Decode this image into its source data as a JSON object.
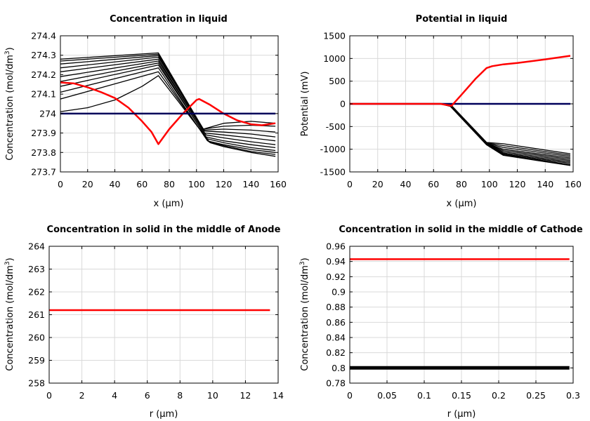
{
  "charts": [
    {
      "title": "Concentration in liquid",
      "xlabel": "x (µm)",
      "ylabel_main": "Concentration (mol/dm",
      "ylabel_sup": "3",
      "ylabel_tail": ")"
    },
    {
      "title": "Potential in liquid",
      "xlabel": "x (µm)",
      "ylabel_main": "Potential (mV)",
      "ylabel_sup": "",
      "ylabel_tail": ""
    },
    {
      "title": "Concentration in solid in the middle of Anode",
      "xlabel": "r (µm)",
      "ylabel_main": "Concentration (mol/dm",
      "ylabel_sup": "3",
      "ylabel_tail": ")"
    },
    {
      "title": "Concentration in solid in the middle of Cathode",
      "xlabel": "r (µm)",
      "ylabel_main": "Concentration (mol/dm",
      "ylabel_sup": "3",
      "ylabel_tail": ")"
    }
  ],
  "chart_data": [
    {
      "type": "line",
      "title": "Concentration in liquid",
      "xlabel": "x (µm)",
      "ylabel": "Concentration (mol/dm3)",
      "xlim": [
        0,
        160
      ],
      "ylim": [
        273.7,
        274.4
      ],
      "xticks": [
        0,
        20,
        40,
        60,
        80,
        100,
        120,
        140,
        160
      ],
      "xtick_labels": [
        "0",
        "20",
        "40",
        "60",
        "80",
        "100",
        "120",
        "140",
        "160"
      ],
      "yticks": [
        273.7,
        273.8,
        273.9,
        274.0,
        274.1,
        274.2,
        274.3,
        274.4
      ],
      "ytick_labels": [
        "273.7",
        "273.8",
        "273.9",
        "274",
        "274.1",
        "274.2",
        "274.3",
        "274.4"
      ],
      "grid": true,
      "legend": "none",
      "series": [
        {
          "color": "#000000",
          "width": 1.3,
          "x": [
            0,
            72,
            105,
            120,
            140,
            158
          ],
          "y": [
            274.28,
            274.312,
            273.92,
            273.95,
            273.96,
            273.95
          ]
        },
        {
          "color": "#000000",
          "width": 1.3,
          "x": [
            0,
            72,
            105,
            120,
            140,
            158
          ],
          "y": [
            274.27,
            274.305,
            273.92,
            273.935,
            273.94,
            273.935
          ]
        },
        {
          "color": "#000000",
          "width": 1.3,
          "x": [
            0,
            72,
            105,
            120,
            140,
            158
          ],
          "y": [
            274.255,
            274.298,
            273.915,
            273.92,
            273.915,
            273.905
          ]
        },
        {
          "color": "#000000",
          "width": 1.3,
          "x": [
            0,
            72,
            106,
            120,
            140,
            158
          ],
          "y": [
            274.235,
            274.29,
            273.91,
            273.905,
            273.895,
            273.88
          ]
        },
        {
          "color": "#000000",
          "width": 1.3,
          "x": [
            0,
            72,
            106,
            120,
            140,
            158
          ],
          "y": [
            274.215,
            274.28,
            273.9,
            273.89,
            273.875,
            273.86
          ]
        },
        {
          "color": "#000000",
          "width": 1.3,
          "x": [
            0,
            72,
            107,
            120,
            140,
            158
          ],
          "y": [
            274.19,
            274.27,
            273.89,
            273.875,
            273.855,
            273.84
          ]
        },
        {
          "color": "#000000",
          "width": 1.3,
          "x": [
            0,
            72,
            107,
            120,
            140,
            158
          ],
          "y": [
            274.165,
            274.26,
            273.88,
            273.86,
            273.84,
            273.825
          ]
        },
        {
          "color": "#000000",
          "width": 1.3,
          "x": [
            0,
            72,
            108,
            120,
            140,
            158
          ],
          "y": [
            274.14,
            274.25,
            273.87,
            273.85,
            273.825,
            273.81
          ]
        },
        {
          "color": "#000000",
          "width": 1.3,
          "x": [
            0,
            72,
            108,
            120,
            140,
            158
          ],
          "y": [
            274.11,
            274.235,
            273.86,
            273.84,
            273.815,
            273.8
          ]
        },
        {
          "color": "#000000",
          "width": 1.3,
          "x": [
            0,
            72,
            109,
            120,
            140,
            158
          ],
          "y": [
            274.075,
            274.215,
            273.855,
            273.835,
            273.805,
            273.79
          ]
        },
        {
          "color": "#000000",
          "width": 1.3,
          "x": [
            0,
            20,
            40,
            60,
            72,
            110,
            120,
            140,
            158
          ],
          "y": [
            274.01,
            274.03,
            274.07,
            274.14,
            274.195,
            273.85,
            273.83,
            273.8,
            273.78
          ]
        },
        {
          "color": "#ff0000",
          "width": 2.5,
          "x": [
            0,
            10,
            20,
            30,
            40,
            50,
            60,
            67,
            72,
            80,
            90,
            100,
            102,
            110,
            120,
            130,
            140,
            148,
            158
          ],
          "y": [
            274.16,
            274.155,
            274.135,
            274.11,
            274.08,
            274.03,
            273.96,
            273.905,
            273.843,
            273.92,
            274.0,
            274.07,
            274.075,
            274.045,
            274.0,
            273.965,
            273.945,
            273.94,
            273.95
          ]
        },
        {
          "color": "#00005a",
          "width": 2.5,
          "x": [
            0,
            158
          ],
          "y": [
            274.0,
            274.0
          ]
        }
      ]
    },
    {
      "type": "line",
      "title": "Potential in liquid",
      "xlabel": "x (µm)",
      "ylabel": "Potential (mV)",
      "xlim": [
        0,
        160
      ],
      "ylim": [
        -1500,
        1500
      ],
      "xticks": [
        0,
        20,
        40,
        60,
        80,
        100,
        120,
        140,
        160
      ],
      "xtick_labels": [
        "0",
        "20",
        "40",
        "60",
        "80",
        "100",
        "120",
        "140",
        "160"
      ],
      "yticks": [
        -1500,
        -1000,
        -500,
        0,
        500,
        1000,
        1500
      ],
      "ytick_labels": [
        "-1500",
        "-1000",
        "-500",
        "0",
        "500",
        "1000",
        "1500"
      ],
      "grid": true,
      "legend": "none",
      "series": [
        {
          "color": "#000000",
          "width": 1.3,
          "x": [
            0,
            65,
            72,
            98,
            110,
            158
          ],
          "y": [
            0,
            0,
            -10,
            -850,
            -880,
            -1100
          ]
        },
        {
          "color": "#000000",
          "width": 1.3,
          "x": [
            0,
            65,
            72,
            98,
            110,
            158
          ],
          "y": [
            0,
            0,
            -15,
            -860,
            -920,
            -1130
          ]
        },
        {
          "color": "#000000",
          "width": 1.3,
          "x": [
            0,
            65,
            72,
            98,
            110,
            158
          ],
          "y": [
            0,
            0,
            -20,
            -870,
            -960,
            -1160
          ]
        },
        {
          "color": "#000000",
          "width": 1.3,
          "x": [
            0,
            65,
            72,
            98,
            110,
            158
          ],
          "y": [
            0,
            0,
            -25,
            -875,
            -1000,
            -1190
          ]
        },
        {
          "color": "#000000",
          "width": 1.3,
          "x": [
            0,
            65,
            72,
            98,
            110,
            158
          ],
          "y": [
            0,
            0,
            -30,
            -880,
            -1030,
            -1220
          ]
        },
        {
          "color": "#000000",
          "width": 1.3,
          "x": [
            0,
            65,
            72,
            98,
            110,
            158
          ],
          "y": [
            0,
            0,
            -35,
            -885,
            -1060,
            -1250
          ]
        },
        {
          "color": "#000000",
          "width": 1.3,
          "x": [
            0,
            65,
            72,
            98,
            110,
            158
          ],
          "y": [
            0,
            0,
            -40,
            -890,
            -1085,
            -1280
          ]
        },
        {
          "color": "#000000",
          "width": 1.3,
          "x": [
            0,
            65,
            72,
            98,
            110,
            158
          ],
          "y": [
            0,
            0,
            -45,
            -895,
            -1105,
            -1310
          ]
        },
        {
          "color": "#000000",
          "width": 1.3,
          "x": [
            0,
            65,
            72,
            98,
            110,
            158
          ],
          "y": [
            0,
            0,
            -50,
            -900,
            -1120,
            -1340
          ]
        },
        {
          "color": "#000000",
          "width": 1.3,
          "x": [
            0,
            65,
            72,
            98,
            110,
            158
          ],
          "y": [
            0,
            0,
            -55,
            -905,
            -1135,
            -1360
          ]
        },
        {
          "color": "#00005a",
          "width": 2.5,
          "x": [
            0,
            158
          ],
          "y": [
            0,
            0
          ]
        },
        {
          "color": "#ff0000",
          "width": 2.5,
          "x": [
            0,
            65,
            70,
            73,
            80,
            90,
            98,
            102,
            110,
            120,
            140,
            158
          ],
          "y": [
            0,
            0,
            -30,
            -40,
            200,
            550,
            790,
            830,
            870,
            900,
            980,
            1060
          ]
        }
      ]
    },
    {
      "type": "line",
      "title": "Concentration in solid in the middle of Anode",
      "xlabel": "r (µm)",
      "ylabel": "Concentration (mol/dm3)",
      "xlim": [
        0,
        14
      ],
      "ylim": [
        258,
        264
      ],
      "xticks": [
        0,
        2,
        4,
        6,
        8,
        10,
        12,
        14
      ],
      "xtick_labels": [
        "0",
        "2",
        "4",
        "6",
        "8",
        "10",
        "12",
        "14"
      ],
      "yticks": [
        258,
        259,
        260,
        261,
        262,
        263,
        264
      ],
      "ytick_labels": [
        "258",
        "259",
        "260",
        "261",
        "262",
        "263",
        "264"
      ],
      "grid": true,
      "legend": "none",
      "series": [
        {
          "color": "#ff0000",
          "width": 2.5,
          "x": [
            0,
            13.5
          ],
          "y": [
            261.2,
            261.2
          ]
        }
      ]
    },
    {
      "type": "line",
      "title": "Concentration in solid in the middle of Cathode",
      "xlabel": "r (µm)",
      "ylabel": "Concentration (mol/dm3)",
      "xlim": [
        0,
        0.3
      ],
      "ylim": [
        0.78,
        0.96
      ],
      "xticks": [
        0,
        0.05,
        0.1,
        0.15,
        0.2,
        0.25,
        0.3
      ],
      "xtick_labels": [
        "0",
        "0.05",
        "0.1",
        "0.15",
        "0.2",
        "0.25",
        "0.3"
      ],
      "yticks": [
        0.78,
        0.8,
        0.82,
        0.84,
        0.86,
        0.88,
        0.9,
        0.92,
        0.94,
        0.96
      ],
      "ytick_labels": [
        "0.78",
        "0.8",
        "0.82",
        "0.84",
        "0.86",
        "0.88",
        "0.9",
        "0.92",
        "0.94",
        "0.96"
      ],
      "grid": true,
      "legend": "none",
      "series": [
        {
          "color": "#000000",
          "width": 5,
          "x": [
            0,
            0.295
          ],
          "y": [
            0.8,
            0.8
          ]
        },
        {
          "color": "#ff0000",
          "width": 2.5,
          "x": [
            0,
            0.295
          ],
          "y": [
            0.943,
            0.943
          ]
        }
      ]
    }
  ]
}
